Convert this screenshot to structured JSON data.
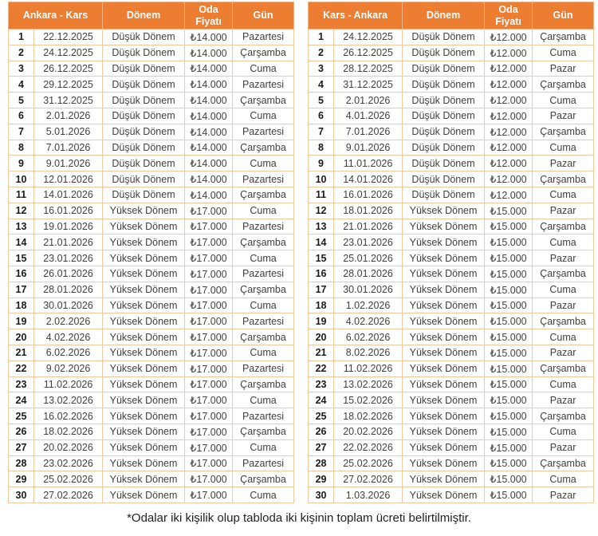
{
  "colors": {
    "header_bg": "#ED7D31",
    "header_text": "#FFFFFF",
    "grid_border": "#F6C8A2",
    "body_text": "#3F3F3F"
  },
  "footnote": "*Odalar iki kişilik olup tabloda iki kişinin toplam ücreti belirtilmiştir.",
  "tables": [
    {
      "route_label": "Ankara - Kars",
      "columns": [
        "Dönem",
        "Oda Fiyatı",
        "Gün"
      ],
      "rows": [
        [
          "1",
          "22.12.2025",
          "Düşük Dönem",
          "₺14.000",
          "Pazartesi"
        ],
        [
          "2",
          "24.12.2025",
          "Düşük Dönem",
          "₺14.000",
          "Çarşamba"
        ],
        [
          "3",
          "26.12.2025",
          "Düşük Dönem",
          "₺14.000",
          "Cuma"
        ],
        [
          "4",
          "29.12.2025",
          "Düşük Dönem",
          "₺14.000",
          "Pazartesi"
        ],
        [
          "5",
          "31.12.2025",
          "Düşük Dönem",
          "₺14.000",
          "Çarşamba"
        ],
        [
          "6",
          "2.01.2026",
          "Düşük Dönem",
          "₺14.000",
          "Cuma"
        ],
        [
          "7",
          "5.01.2026",
          "Düşük Dönem",
          "₺14.000",
          "Pazartesi"
        ],
        [
          "8",
          "7.01.2026",
          "Düşük Dönem",
          "₺14.000",
          "Çarşamba"
        ],
        [
          "9",
          "9.01.2026",
          "Düşük Dönem",
          "₺14.000",
          "Cuma"
        ],
        [
          "10",
          "12.01.2026",
          "Düşük Dönem",
          "₺14.000",
          "Pazartesi"
        ],
        [
          "11",
          "14.01.2026",
          "Düşük Dönem",
          "₺14.000",
          "Çarşamba"
        ],
        [
          "12",
          "16.01.2026",
          "Yüksek Dönem",
          "₺17.000",
          "Cuma"
        ],
        [
          "13",
          "19.01.2026",
          "Yüksek Dönem",
          "₺17.000",
          "Pazartesi"
        ],
        [
          "14",
          "21.01.2026",
          "Yüksek Dönem",
          "₺17.000",
          "Çarşamba"
        ],
        [
          "15",
          "23.01.2026",
          "Yüksek Dönem",
          "₺17.000",
          "Cuma"
        ],
        [
          "16",
          "26.01.2026",
          "Yüksek Dönem",
          "₺17.000",
          "Pazartesi"
        ],
        [
          "17",
          "28.01.2026",
          "Yüksek Dönem",
          "₺17.000",
          "Çarşamba"
        ],
        [
          "18",
          "30.01.2026",
          "Yüksek Dönem",
          "₺17.000",
          "Cuma"
        ],
        [
          "19",
          "2.02.2026",
          "Yüksek Dönem",
          "₺17.000",
          "Pazartesi"
        ],
        [
          "20",
          "4.02.2026",
          "Yüksek Dönem",
          "₺17.000",
          "Çarşamba"
        ],
        [
          "21",
          "6.02.2026",
          "Yüksek Dönem",
          "₺17.000",
          "Cuma"
        ],
        [
          "22",
          "9.02.2026",
          "Yüksek Dönem",
          "₺17.000",
          "Pazartesi"
        ],
        [
          "23",
          "11.02.2026",
          "Yüksek Dönem",
          "₺17.000",
          "Çarşamba"
        ],
        [
          "24",
          "13.02.2026",
          "Yüksek Dönem",
          "₺17.000",
          "Cuma"
        ],
        [
          "25",
          "16.02.2026",
          "Yüksek Dönem",
          "₺17.000",
          "Pazartesi"
        ],
        [
          "26",
          "18.02.2026",
          "Yüksek Dönem",
          "₺17.000",
          "Çarşamba"
        ],
        [
          "27",
          "20.02.2026",
          "Yüksek Dönem",
          "₺17.000",
          "Cuma"
        ],
        [
          "28",
          "23.02.2026",
          "Yüksek Dönem",
          "₺17.000",
          "Pazartesi"
        ],
        [
          "29",
          "25.02.2026",
          "Yüksek Dönem",
          "₺17.000",
          "Çarşamba"
        ],
        [
          "30",
          "27.02.2026",
          "Yüksek Dönem",
          "₺17.000",
          "Cuma"
        ]
      ]
    },
    {
      "route_label": "Kars - Ankara",
      "columns": [
        "Dönem",
        "Oda Fiyatı",
        "Gün"
      ],
      "rows": [
        [
          "1",
          "24.12.2025",
          "Düşük Dönem",
          "₺12.000",
          "Çarşamba"
        ],
        [
          "2",
          "26.12.2025",
          "Düşük Dönem",
          "₺12.000",
          "Cuma"
        ],
        [
          "3",
          "28.12.2025",
          "Düşük Dönem",
          "₺12.000",
          "Pazar"
        ],
        [
          "4",
          "31.12.2025",
          "Düşük Dönem",
          "₺12.000",
          "Çarşamba"
        ],
        [
          "5",
          "2.01.2026",
          "Düşük Dönem",
          "₺12.000",
          "Cuma"
        ],
        [
          "6",
          "4.01.2026",
          "Düşük Dönem",
          "₺12.000",
          "Pazar"
        ],
        [
          "7",
          "7.01.2026",
          "Düşük Dönem",
          "₺12.000",
          "Çarşamba"
        ],
        [
          "8",
          "9.01.2026",
          "Düşük Dönem",
          "₺12.000",
          "Cuma"
        ],
        [
          "9",
          "11.01.2026",
          "Düşük Dönem",
          "₺12.000",
          "Pazar"
        ],
        [
          "10",
          "14.01.2026",
          "Düşük Dönem",
          "₺12.000",
          "Çarşamba"
        ],
        [
          "11",
          "16.01.2026",
          "Düşük Dönem",
          "₺12.000",
          "Cuma"
        ],
        [
          "12",
          "18.01.2026",
          "Yüksek Dönem",
          "₺15.000",
          "Pazar"
        ],
        [
          "13",
          "21.01.2026",
          "Yüksek Dönem",
          "₺15.000",
          "Çarşamba"
        ],
        [
          "14",
          "23.01.2026",
          "Yüksek Dönem",
          "₺15.000",
          "Cuma"
        ],
        [
          "15",
          "25.01.2026",
          "Yüksek Dönem",
          "₺15.000",
          "Pazar"
        ],
        [
          "16",
          "28.01.2026",
          "Yüksek Dönem",
          "₺15.000",
          "Çarşamba"
        ],
        [
          "17",
          "30.01.2026",
          "Yüksek Dönem",
          "₺15.000",
          "Cuma"
        ],
        [
          "18",
          "1.02.2026",
          "Yüksek Dönem",
          "₺15.000",
          "Pazar"
        ],
        [
          "19",
          "4.02.2026",
          "Yüksek Dönem",
          "₺15.000",
          "Çarşamba"
        ],
        [
          "20",
          "6.02.2026",
          "Yüksek Dönem",
          "₺15.000",
          "Cuma"
        ],
        [
          "21",
          "8.02.2026",
          "Yüksek Dönem",
          "₺15.000",
          "Pazar"
        ],
        [
          "22",
          "11.02.2026",
          "Yüksek Dönem",
          "₺15.000",
          "Çarşamba"
        ],
        [
          "23",
          "13.02.2026",
          "Yüksek Dönem",
          "₺15.000",
          "Cuma"
        ],
        [
          "24",
          "15.02.2026",
          "Yüksek Dönem",
          "₺15.000",
          "Pazar"
        ],
        [
          "25",
          "18.02.2026",
          "Yüksek Dönem",
          "₺15.000",
          "Çarşamba"
        ],
        [
          "26",
          "20.02.2026",
          "Yüksek Dönem",
          "₺15.000",
          "Cuma"
        ],
        [
          "27",
          "22.02.2026",
          "Yüksek Dönem",
          "₺15.000",
          "Pazar"
        ],
        [
          "28",
          "25.02.2026",
          "Yüksek Dönem",
          "₺15.000",
          "Çarşamba"
        ],
        [
          "29",
          "27.02.2026",
          "Yüksek Dönem",
          "₺15.000",
          "Cuma"
        ],
        [
          "30",
          "1.03.2026",
          "Yüksek Dönem",
          "₺15.000",
          "Pazar"
        ]
      ]
    }
  ]
}
